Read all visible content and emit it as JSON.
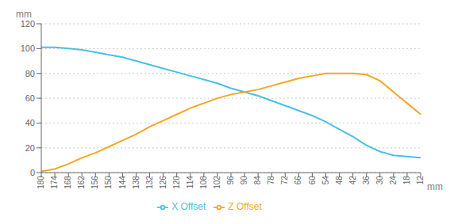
{
  "chart_data": {
    "type": "line",
    "categories": [
      "180",
      "174",
      "168",
      "162",
      "156",
      "150",
      "144",
      "138",
      "132",
      "126",
      "120",
      "114",
      "108",
      "102",
      "96",
      "90",
      "84",
      "78",
      "72",
      "66",
      "60",
      "54",
      "48",
      "42",
      "36",
      "30",
      "24",
      "18",
      "12"
    ],
    "series": [
      {
        "name": "X Offset",
        "color": "#4bbfe8",
        "values": [
          101,
          101,
          100,
          99,
          97,
          95,
          93,
          90,
          87,
          84,
          81,
          78,
          75,
          72,
          68,
          65,
          62,
          58,
          54,
          50,
          46,
          41,
          35,
          29,
          22,
          17,
          14,
          13,
          12
        ]
      },
      {
        "name": "Z Offset",
        "color": "#f5a623",
        "values": [
          1,
          3,
          7,
          12,
          16,
          21,
          26,
          31,
          37,
          42,
          47,
          52,
          56,
          60,
          63,
          65,
          67,
          70,
          73,
          76,
          78,
          80,
          80,
          80,
          79,
          74,
          65,
          56,
          47
        ]
      }
    ],
    "y_label": "mm",
    "x_label": "mm",
    "ylim": [
      0,
      120
    ],
    "yticks": [
      0,
      20,
      40,
      60,
      80,
      100,
      120
    ],
    "grid": true,
    "legend": "bottom"
  }
}
